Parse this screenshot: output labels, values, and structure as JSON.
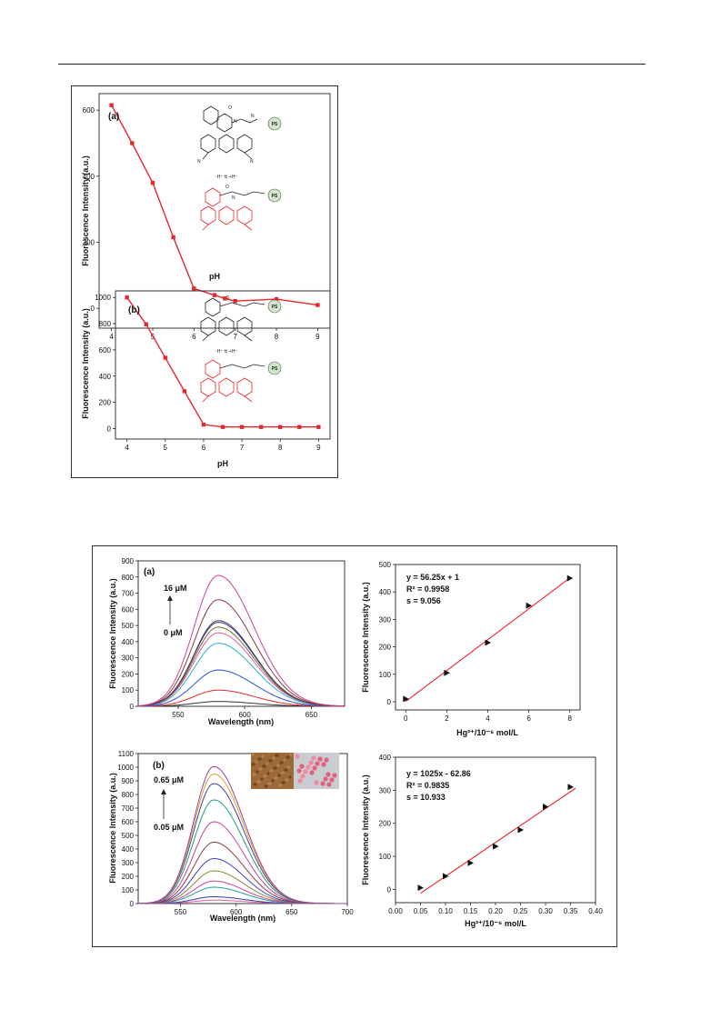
{
  "figure_top": {
    "panel_a": {
      "label": "(a)",
      "xlabel": "pH",
      "ylabel": "Fluorescence Intensity (a.u.)",
      "scheme": {
        "proton": "-H⁺ ⇅ +H⁺",
        "ps": "PS"
      }
    },
    "panel_b": {
      "label": "(b)",
      "xlabel": "pH",
      "ylabel": "Fluorescence Intensity (a.u.)",
      "scheme": {
        "proton": "-H⁺ ⇅ +H⁺",
        "ps": "PS"
      }
    }
  },
  "figure_bottom": {
    "spec_a": {
      "label": "(a)",
      "xlabel": "Wavelength (nm)",
      "ylabel": "Fluorescence Intensity (a.u.)",
      "conc_high": "16 μM",
      "conc_low": "0 μM"
    },
    "spec_b": {
      "label": "(b)",
      "xlabel": "Wavelength (nm)",
      "ylabel": "Fluorescence Intensity (a.u.)",
      "conc_high": "0.65 μM",
      "conc_low": "0.05 μM"
    },
    "cal_a": {
      "xlabel": "Hg²⁺/10⁻⁶ mol/L",
      "ylabel": "Fluorescence Intensity (a.u.)",
      "eq": "y = 56.25x + 1",
      "r2": "R² = 0.9958",
      "s": "s = 9.056"
    },
    "cal_b": {
      "xlabel": "Hg²⁺/10⁻⁶ mol/L",
      "ylabel": "Fluorescence Intensity (a.u.)",
      "eq": "y = 1025x - 62.86",
      "r2": "R² = 0.9835",
      "s": "s = 10.933"
    }
  },
  "chart_data": [
    {
      "id": "ph_a",
      "type": "line",
      "x_ticks": [
        4,
        5,
        6,
        7,
        8,
        9
      ],
      "y_ticks": [
        0,
        200,
        400,
        600
      ],
      "xlim": [
        3.7,
        9.3
      ],
      "ylim": [
        -60,
        650
      ],
      "color": "#e8262b",
      "x": [
        4,
        4.5,
        5,
        5.5,
        6,
        6.5,
        6.75,
        7,
        8,
        9
      ],
      "y": [
        615,
        500,
        380,
        215,
        60,
        40,
        30,
        22,
        28,
        10
      ]
    },
    {
      "id": "ph_b",
      "type": "line",
      "x_ticks": [
        4,
        5,
        6,
        7,
        8,
        9
      ],
      "y_ticks": [
        0,
        200,
        400,
        600,
        800,
        1000
      ],
      "xlim": [
        3.7,
        9.3
      ],
      "ylim": [
        -80,
        1050
      ],
      "color": "#e8262b",
      "x": [
        4,
        4.5,
        5,
        5.5,
        6,
        6.5,
        7,
        7.5,
        8,
        8.5,
        9
      ],
      "y": [
        1000,
        795,
        540,
        285,
        30,
        12,
        12,
        12,
        12,
        12,
        12
      ]
    },
    {
      "id": "spec_a",
      "type": "line",
      "x_ticks": [
        550,
        600,
        650
      ],
      "y_ticks": [
        0,
        100,
        200,
        300,
        400,
        500,
        600,
        700,
        800,
        900
      ],
      "xlim": [
        520,
        675
      ],
      "ylim": [
        0,
        900
      ],
      "peak_nm": 580,
      "series_peaks": [
        30,
        100,
        225,
        390,
        455,
        490,
        520,
        530,
        660,
        810
      ],
      "series_colors": [
        "#333333",
        "#e8262b",
        "#2a50d8",
        "#2ab0d8",
        "#e05aa0",
        "#7a6a30",
        "#3a3aaa",
        "#444444",
        "#8b3a3a",
        "#d0409a"
      ]
    },
    {
      "id": "spec_b",
      "type": "line",
      "x_ticks": [
        550,
        600,
        650,
        700
      ],
      "y_ticks": [
        0,
        100,
        200,
        300,
        400,
        500,
        600,
        700,
        800,
        900,
        1000,
        1100
      ],
      "xlim": [
        512,
        700
      ],
      "ylim": [
        0,
        1100
      ],
      "peak_nm": 580,
      "series_peaks": [
        25,
        50,
        120,
        165,
        240,
        330,
        450,
        600,
        760,
        880,
        950,
        1005
      ],
      "series_colors": [
        "#e05aa0",
        "#3a3aaa",
        "#20a0a0",
        "#d0409a",
        "#8a8a30",
        "#4040c0",
        "#8b3a3a",
        "#d0409a",
        "#20a070",
        "#4040a0",
        "#e0a020",
        "#9a40a0"
      ]
    },
    {
      "id": "cal_a",
      "type": "scatter",
      "x_ticks": [
        0,
        2,
        4,
        6,
        8
      ],
      "y_ticks": [
        0,
        100,
        200,
        300,
        400,
        500
      ],
      "xlim": [
        -0.5,
        8.5
      ],
      "ylim": [
        -30,
        500
      ],
      "x": [
        0,
        2,
        4,
        6,
        8
      ],
      "y": [
        10,
        105,
        215,
        350,
        450
      ],
      "fit": {
        "slope": 56.25,
        "intercept": 1,
        "x_from": 0,
        "x_to": 8
      }
    },
    {
      "id": "cal_b",
      "type": "scatter",
      "x_ticks": [
        0.0,
        0.05,
        0.1,
        0.15,
        0.2,
        0.25,
        0.3,
        0.35,
        0.4
      ],
      "y_ticks": [
        0,
        100,
        200,
        300,
        400
      ],
      "xlim": [
        0,
        0.4
      ],
      "ylim": [
        -40,
        400
      ],
      "x": [
        0.05,
        0.1,
        0.15,
        0.2,
        0.25,
        0.3,
        0.35
      ],
      "y": [
        5,
        40,
        80,
        130,
        180,
        250,
        310
      ],
      "fit": {
        "slope": 1025,
        "intercept": -62.86,
        "x_from": 0.05,
        "x_to": 0.36
      }
    }
  ]
}
